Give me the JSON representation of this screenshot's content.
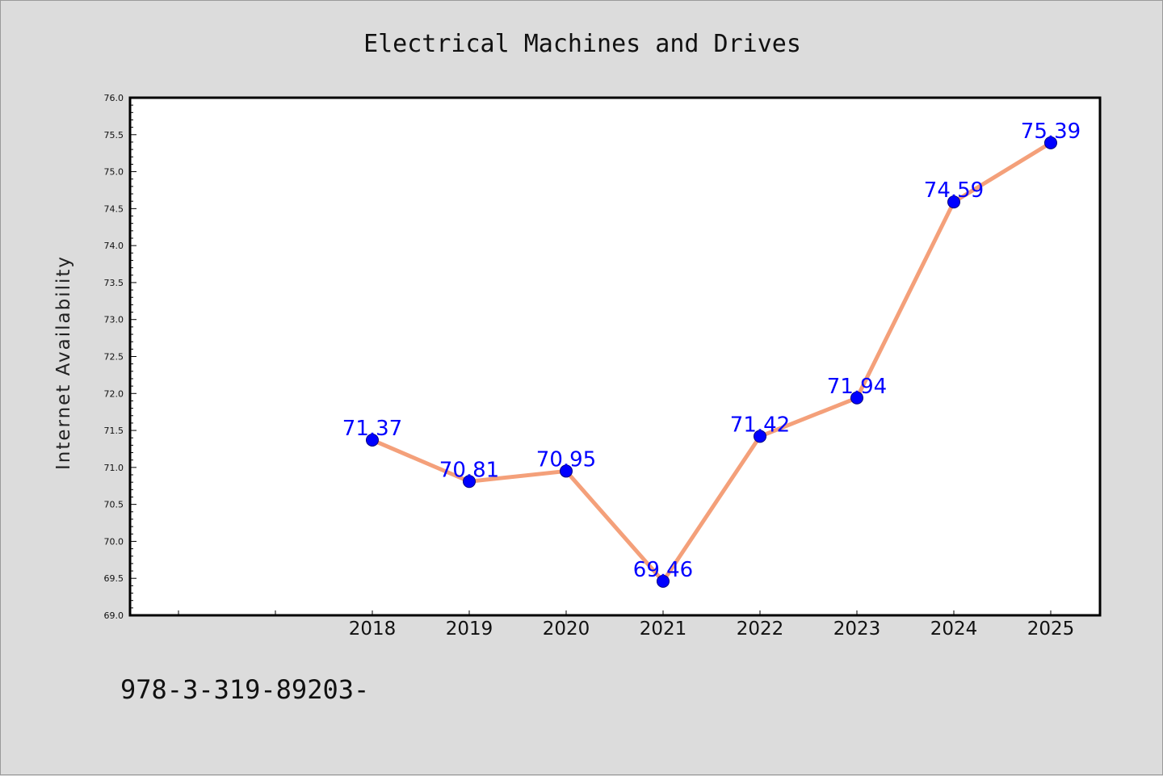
{
  "chart_data": {
    "type": "line",
    "title": "Electrical Machines and Drives",
    "xlabel": "",
    "ylabel": "Internet Availability",
    "categories": [
      "2018",
      "2019",
      "2020",
      "2021",
      "2022",
      "2023",
      "2024",
      "2025"
    ],
    "series": [
      {
        "values": [
          71.37,
          70.81,
          70.95,
          69.46,
          71.42,
          71.94,
          74.59,
          75.39
        ]
      }
    ],
    "data_labels": [
      "71.37",
      "70.81",
      "70.95",
      "69.46",
      "71.42",
      "71.94",
      "74.59",
      "75.39"
    ],
    "ylim": [
      69.0,
      76.0
    ],
    "yticks": [
      "69.0",
      "69.5",
      "70.0",
      "70.5",
      "71.0",
      "71.5",
      "72.0",
      "72.5",
      "73.0",
      "73.5",
      "74.0",
      "74.5",
      "75.0",
      "75.5",
      "76.0"
    ],
    "grid": false,
    "legend": "none",
    "colors": {
      "line": "#f4a07a",
      "marker": "#0000ff",
      "marker_edge": "#000080",
      "label": "#0000ff",
      "background": "#dcdcdc",
      "plot_area": "#ffffff"
    }
  },
  "footer": {
    "text": "978-3-319-89203-"
  }
}
